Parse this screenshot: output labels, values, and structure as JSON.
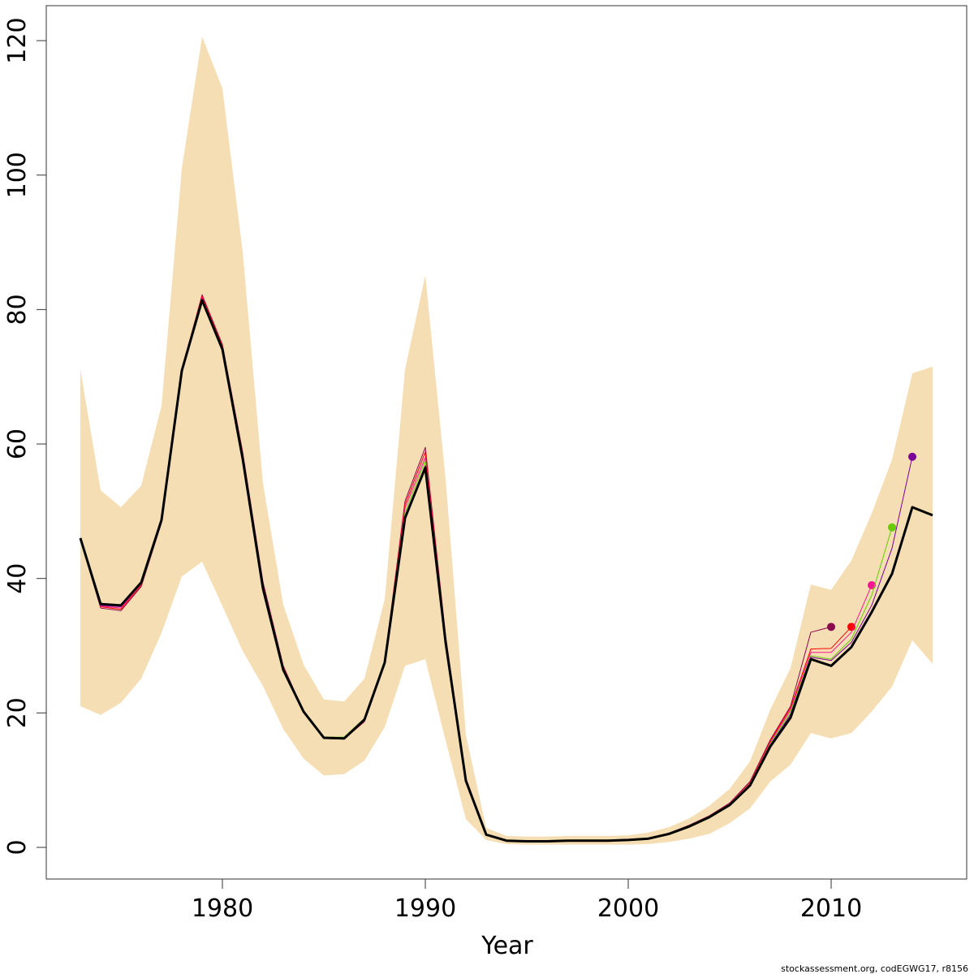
{
  "chart_data": {
    "type": "line",
    "x_label": "Year",
    "footnote": "stockassessment.org, codEGWG17, r8156",
    "x": [
      1973,
      1974,
      1975,
      1976,
      1977,
      1978,
      1979,
      1980,
      1981,
      1982,
      1983,
      1984,
      1985,
      1986,
      1987,
      1988,
      1989,
      1990,
      1991,
      1992,
      1993,
      1994,
      1995,
      1996,
      1997,
      1998,
      1999,
      2000,
      2001,
      2002,
      2003,
      2004,
      2005,
      2006,
      2007,
      2008,
      2009,
      2010,
      2011,
      2012,
      2013,
      2014,
      2015
    ],
    "band": {
      "color": "#F5DEB3",
      "upper": [
        71.1,
        53.1,
        50.6,
        53.8,
        65.7,
        101,
        120.6,
        112.9,
        88.6,
        54.1,
        36.1,
        27.2,
        22.0,
        21.7,
        25.1,
        36.9,
        71.1,
        85.1,
        54.8,
        16.7,
        2.9,
        1.7,
        1.6,
        1.6,
        1.7,
        1.7,
        1.7,
        1.8,
        2.2,
        3.0,
        4.3,
        6.2,
        8.7,
        12.8,
        20.5,
        26.7,
        39.1,
        38.3,
        42.7,
        49.7,
        57.7,
        70.5,
        71.5
      ],
      "lower": [
        21.0,
        19.7,
        21.5,
        25.1,
        31.9,
        40.3,
        42.5,
        35.9,
        29.2,
        24.0,
        17.6,
        13.2,
        10.7,
        10.9,
        12.9,
        17.9,
        27.0,
        28.0,
        15.9,
        4.2,
        1.1,
        0.5,
        0.4,
        0.4,
        0.4,
        0.4,
        0.4,
        0.4,
        0.5,
        0.8,
        1.3,
        2.0,
        3.6,
        5.8,
        9.8,
        12.3,
        17.0,
        16.2,
        17.0,
        20.2,
        23.9,
        30.8,
        27.3
      ]
    },
    "series": [
      {
        "color": "#8B0A50",
        "endpoint_marker": true,
        "values": [
          45.8,
          35.6,
          35.2,
          38.8,
          48.3,
          71.0,
          82.2,
          74.8,
          58.8,
          39.5,
          27.0,
          20.2,
          16.2,
          16.1,
          18.7,
          27.8,
          51.5,
          59.5,
          31.5,
          10.3,
          2.0,
          1.0,
          0.9,
          0.9,
          1.0,
          1.0,
          1.0,
          1.1,
          1.4,
          2.1,
          3.3,
          4.7,
          6.6,
          9.8,
          16.0,
          21.0,
          32.0,
          32.8,
          null,
          null,
          null,
          null,
          null
        ]
      },
      {
        "color": "#FF0000",
        "endpoint_marker": true,
        "values": [
          45.9,
          35.8,
          35.4,
          39.0,
          48.5,
          71.2,
          82.0,
          74.6,
          58.5,
          39.0,
          26.8,
          20.1,
          16.2,
          16.1,
          18.8,
          27.7,
          51.0,
          58.8,
          31.2,
          10.2,
          2.0,
          1.0,
          0.9,
          0.9,
          1.0,
          1.0,
          1.0,
          1.1,
          1.4,
          2.1,
          3.2,
          4.6,
          6.5,
          9.6,
          15.8,
          20.8,
          29.5,
          29.6,
          32.8,
          null,
          null,
          null,
          null
        ]
      },
      {
        "color": "#FF1493",
        "endpoint_marker": true,
        "values": [
          45.9,
          35.9,
          35.6,
          39.2,
          48.6,
          71.0,
          81.8,
          74.4,
          58.2,
          38.8,
          26.6,
          20.1,
          16.3,
          16.2,
          18.9,
          27.6,
          50.5,
          58.0,
          31.0,
          10.1,
          1.9,
          1.0,
          0.9,
          0.9,
          1.0,
          1.0,
          1.0,
          1.1,
          1.4,
          2.1,
          3.2,
          4.6,
          6.5,
          9.5,
          15.6,
          20.5,
          29.0,
          29.0,
          32.0,
          39.0,
          null,
          null,
          null
        ]
      },
      {
        "color": "#66CC00",
        "endpoint_marker": true,
        "values": [
          46.0,
          36.1,
          36.0,
          39.5,
          48.8,
          71.0,
          81.5,
          74.2,
          58.0,
          38.6,
          26.5,
          20.2,
          16.4,
          16.4,
          19.2,
          27.6,
          49.8,
          57.5,
          30.8,
          10.0,
          1.9,
          1.0,
          0.9,
          0.9,
          1.0,
          1.0,
          1.0,
          1.1,
          1.3,
          2.0,
          3.1,
          4.5,
          6.4,
          9.4,
          15.4,
          20.2,
          28.5,
          28.0,
          31.0,
          37.5,
          47.6,
          null,
          null
        ]
      },
      {
        "color": "#7B0099",
        "endpoint_marker": true,
        "values": [
          46.0,
          36.0,
          35.8,
          39.3,
          48.7,
          70.9,
          81.3,
          74.1,
          57.9,
          38.5,
          26.4,
          20.2,
          16.3,
          16.2,
          19.0,
          27.5,
          49.2,
          56.8,
          30.6,
          9.9,
          1.9,
          1.0,
          0.9,
          0.9,
          1.0,
          1.0,
          1.0,
          1.1,
          1.3,
          2.0,
          3.1,
          4.5,
          6.3,
          9.3,
          15.2,
          19.8,
          28.3,
          27.8,
          30.5,
          36.0,
          44.5,
          58.1,
          null
        ]
      },
      {
        "color": "#000000",
        "width": 3,
        "values": [
          46.0,
          36.2,
          36.0,
          39.4,
          48.7,
          70.9,
          81.4,
          74.1,
          57.8,
          38.5,
          26.4,
          20.2,
          16.3,
          16.2,
          19.0,
          27.5,
          49.0,
          56.5,
          30.5,
          9.9,
          1.9,
          1.0,
          0.9,
          0.9,
          1.0,
          1.0,
          1.0,
          1.1,
          1.3,
          2.0,
          3.1,
          4.5,
          6.3,
          9.2,
          15.0,
          19.3,
          28.0,
          27.0,
          29.8,
          35.0,
          40.7,
          50.6,
          49.4
        ]
      }
    ],
    "xlim": [
      1971.32,
      2016.68
    ],
    "xticks": [
      1980,
      1990,
      2000,
      2010
    ],
    "ylim": [
      -4.71,
      125.2
    ],
    "yticks": [
      0,
      20,
      40,
      60,
      80,
      100,
      120
    ]
  }
}
